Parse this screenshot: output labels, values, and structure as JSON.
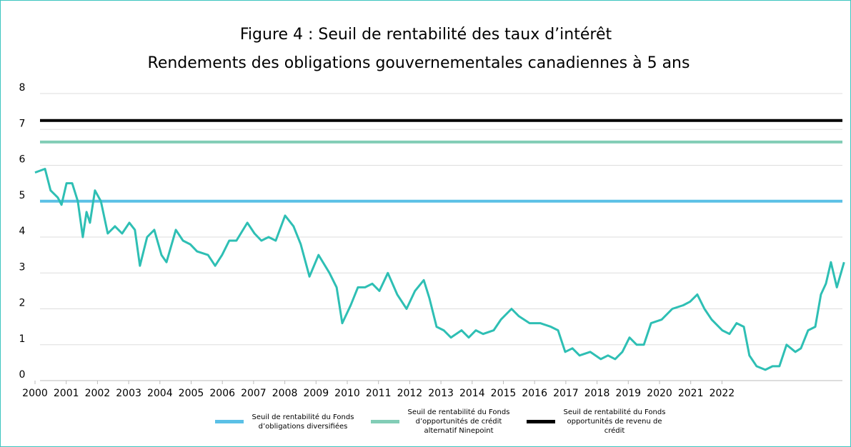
{
  "chart_data": {
    "type": "line",
    "title": "Figure 4 : Seuil de rentabilité des taux d’intérêt",
    "subtitle": "Rendements des obligations gouvernementales canadiennes à 5 ans",
    "color": "#2ebfb4",
    "x": [
      2000.0,
      2000.32,
      2000.5,
      2000.73,
      2000.85,
      2001.01,
      2001.19,
      2001.37,
      2001.53,
      2001.65,
      2001.76,
      2001.92,
      2002.11,
      2002.33,
      2002.56,
      2002.79,
      2003.02,
      2003.2,
      2003.36,
      2003.59,
      2003.82,
      2004.05,
      2004.21,
      2004.51,
      2004.74,
      2004.97,
      2005.19,
      2005.54,
      2005.77,
      2005.99,
      2006.22,
      2006.45,
      2006.8,
      2007.03,
      2007.25,
      2007.48,
      2007.71,
      2008.01,
      2008.28,
      2008.51,
      2008.79,
      2009.08,
      2009.43,
      2009.66,
      2009.84,
      2010.11,
      2010.34,
      2010.57,
      2010.8,
      2011.03,
      2011.3,
      2011.6,
      2011.9,
      2012.17,
      2012.45,
      2012.63,
      2012.86,
      2013.09,
      2013.32,
      2013.66,
      2013.89,
      2014.12,
      2014.35,
      2014.69,
      2014.92,
      2015.26,
      2015.49,
      2015.84,
      2016.18,
      2016.52,
      2016.75,
      2016.98,
      2017.21,
      2017.44,
      2017.78,
      2018.12,
      2018.35,
      2018.58,
      2018.81,
      2019.04,
      2019.27,
      2019.5,
      2019.73,
      2020.07,
      2020.41,
      2020.76,
      2020.98,
      2021.21,
      2021.44,
      2021.67,
      2022.01,
      2022.24,
      2022.47,
      2022.7,
      2022.88,
      2023.11,
      2023.39,
      2023.62,
      2023.84,
      2024.07,
      2024.35,
      2024.53,
      2024.76,
      2024.99,
      2025.17,
      2025.33,
      2025.49,
      2025.68,
      2025.91
    ],
    "values": [
      5.8,
      5.9,
      5.3,
      5.1,
      4.9,
      5.5,
      5.5,
      5.0,
      4.0,
      4.7,
      4.4,
      5.3,
      5.0,
      4.1,
      4.3,
      4.1,
      4.4,
      4.2,
      3.2,
      4.0,
      4.2,
      3.5,
      3.3,
      4.2,
      3.9,
      3.8,
      3.6,
      3.5,
      3.2,
      3.5,
      3.9,
      3.9,
      4.4,
      4.1,
      3.9,
      4.0,
      3.9,
      4.6,
      4.3,
      3.8,
      2.9,
      3.5,
      3.0,
      2.6,
      1.6,
      2.1,
      2.6,
      2.6,
      2.7,
      2.5,
      3.0,
      2.4,
      2.0,
      2.5,
      2.8,
      2.3,
      1.5,
      1.4,
      1.2,
      1.4,
      1.2,
      1.4,
      1.3,
      1.4,
      1.7,
      2.0,
      1.8,
      1.6,
      1.6,
      1.5,
      1.4,
      0.8,
      0.9,
      0.7,
      0.8,
      0.6,
      0.7,
      0.6,
      0.8,
      1.2,
      1.0,
      1.0,
      1.6,
      1.7,
      2.0,
      2.1,
      2.2,
      2.4,
      2.0,
      1.7,
      1.4,
      1.3,
      1.6,
      1.5,
      0.7,
      0.4,
      0.3,
      0.4,
      0.4,
      1.0,
      0.8,
      0.9,
      1.4,
      1.5,
      2.4,
      2.7,
      3.3,
      2.6,
      3.3
    ],
    "reference_lines": [
      {
        "name": "Seuil de rentabilité du Fonds d’obligations diversifiées",
        "color": "#5bc0e6",
        "value": 5.0
      },
      {
        "name": "Seuil de rentabilité du Fonds d’opportunités de crédit alternatif Ninepoint",
        "color": "#82cdb6",
        "value": 6.65
      },
      {
        "name": "Seuil de rentabilité du Fonds opportunités de revenu de crédit",
        "color": "#000000",
        "value": 7.25
      }
    ],
    "xlim": [
      2000,
      2025.95
    ],
    "xticks": [
      2000,
      2001,
      2002,
      2003,
      2004,
      2005,
      2006,
      2007,
      2008,
      2009,
      2010,
      2011,
      2012,
      2013,
      2014,
      2015,
      2016,
      2017,
      2018,
      2019,
      2020,
      2021,
      2022
    ],
    "ylim": [
      0,
      8
    ],
    "yticks": [
      0,
      1,
      2,
      3,
      4,
      5,
      6,
      7,
      8
    ],
    "grid": true
  }
}
